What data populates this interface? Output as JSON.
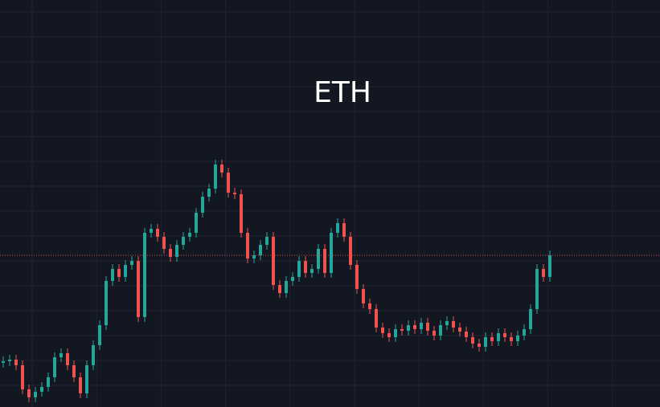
{
  "chart_data": {
    "type": "candlestick",
    "title": "ETH",
    "up_color": "#26a69a",
    "down_color": "#ef5350",
    "grid": true,
    "last_price_line": true,
    "ylim": [
      0,
      507
    ],
    "yticks": [
      27,
      58,
      89,
      120,
      151,
      182,
      213,
      244,
      275,
      306,
      337,
      368,
      399,
      430,
      461,
      492
    ],
    "open": [
      55,
      57,
      59,
      52,
      22,
      12,
      19,
      25,
      37,
      62,
      67,
      52,
      37,
      17,
      52,
      77,
      102,
      157,
      172,
      162,
      177,
      182,
      112,
      217,
      222,
      212,
      197,
      187,
      202,
      212,
      217,
      242,
      262,
      272,
      302,
      292,
      267,
      265,
      217,
      185,
      189,
      202,
      212,
      152,
      142,
      157,
      162,
      182,
      167,
      172,
      197,
      167,
      217,
      229,
      212,
      177,
      147,
      129,
      122,
      99,
      92,
      87,
      97,
      95,
      102,
      97,
      105,
      95,
      89,
      102,
      107,
      99,
      94,
      87,
      79,
      75,
      87,
      82,
      92,
      87,
      82,
      89,
      97,
      122,
      172,
      162
    ],
    "high": [
      63,
      65,
      65,
      58,
      28,
      25,
      31,
      43,
      68,
      73,
      73,
      58,
      43,
      58,
      83,
      108,
      163,
      178,
      178,
      183,
      188,
      188,
      223,
      228,
      228,
      218,
      203,
      208,
      218,
      223,
      248,
      268,
      278,
      308,
      308,
      298,
      273,
      271,
      223,
      195,
      208,
      218,
      218,
      158,
      163,
      168,
      188,
      188,
      178,
      203,
      203,
      223,
      235,
      235,
      218,
      183,
      153,
      135,
      128,
      105,
      98,
      103,
      103,
      108,
      108,
      111,
      111,
      101,
      108,
      113,
      113,
      105,
      100,
      93,
      85,
      93,
      93,
      98,
      98,
      93,
      95,
      103,
      128,
      178,
      178,
      195
    ],
    "low": [
      49,
      51,
      46,
      16,
      6,
      6,
      13,
      19,
      31,
      56,
      46,
      31,
      11,
      11,
      46,
      71,
      96,
      151,
      156,
      156,
      171,
      106,
      106,
      211,
      206,
      191,
      181,
      181,
      196,
      206,
      211,
      236,
      256,
      266,
      286,
      261,
      259,
      211,
      179,
      179,
      183,
      196,
      146,
      136,
      136,
      151,
      156,
      161,
      161,
      166,
      161,
      161,
      211,
      206,
      171,
      141,
      123,
      116,
      93,
      86,
      81,
      81,
      89,
      89,
      91,
      91,
      89,
      83,
      83,
      96,
      93,
      88,
      81,
      73,
      69,
      69,
      76,
      76,
      81,
      76,
      76,
      83,
      91,
      116,
      156,
      156
    ],
    "close": [
      57,
      59,
      52,
      22,
      12,
      19,
      25,
      37,
      62,
      67,
      52,
      37,
      17,
      52,
      77,
      102,
      157,
      172,
      162,
      177,
      182,
      112,
      217,
      222,
      212,
      197,
      187,
      202,
      212,
      217,
      242,
      262,
      272,
      302,
      292,
      267,
      265,
      217,
      185,
      189,
      202,
      212,
      152,
      142,
      157,
      162,
      182,
      167,
      172,
      197,
      167,
      217,
      229,
      212,
      177,
      147,
      129,
      122,
      99,
      92,
      87,
      97,
      95,
      102,
      97,
      105,
      95,
      89,
      102,
      107,
      99,
      94,
      87,
      79,
      75,
      87,
      82,
      92,
      87,
      82,
      89,
      97,
      122,
      172,
      162,
      189
    ]
  }
}
